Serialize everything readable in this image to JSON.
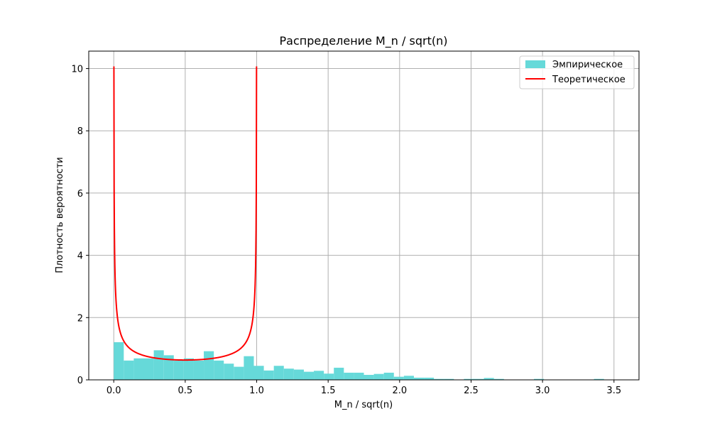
{
  "chart_data": {
    "type": "histogram",
    "title": "Распределение M_n / sqrt(n)",
    "xlabel": "M_n / sqrt(n)",
    "ylabel": "Плотность вероятности",
    "xlim": [
      -0.175,
      3.675
    ],
    "ylim": [
      0,
      10.56
    ],
    "xticks": [
      0.0,
      0.5,
      1.0,
      1.5,
      2.0,
      2.5,
      3.0,
      3.5
    ],
    "xtick_labels": [
      "0.0",
      "0.5",
      "1.0",
      "1.5",
      "2.0",
      "2.5",
      "3.0",
      "3.5"
    ],
    "yticks": [
      0,
      2,
      4,
      6,
      8,
      10
    ],
    "ytick_labels": [
      "0",
      "2",
      "4",
      "6",
      "8",
      "10"
    ],
    "grid": true,
    "legend_position": "top-right",
    "histogram": {
      "name": "Эмпирическое",
      "color": "#66d9d9",
      "bin_edges": [
        0.0,
        0.07,
        0.14,
        0.21,
        0.28,
        0.35,
        0.42,
        0.49,
        0.56,
        0.63,
        0.7,
        0.77,
        0.84,
        0.91,
        0.98,
        1.05,
        1.12,
        1.19,
        1.26,
        1.33,
        1.4,
        1.47,
        1.54,
        1.61,
        1.68,
        1.75,
        1.82,
        1.89,
        1.96,
        2.03,
        2.1,
        2.17,
        2.24,
        2.31,
        2.38,
        2.45,
        2.52,
        2.59,
        2.66,
        2.73,
        2.8,
        2.87,
        2.94,
        3.01,
        3.08,
        3.15,
        3.22,
        3.29,
        3.36,
        3.43,
        3.5
      ],
      "density": [
        1.21,
        0.62,
        0.69,
        0.69,
        0.95,
        0.79,
        0.62,
        0.69,
        0.62,
        0.92,
        0.62,
        0.52,
        0.42,
        0.76,
        0.45,
        0.3,
        0.45,
        0.36,
        0.33,
        0.26,
        0.29,
        0.2,
        0.39,
        0.23,
        0.23,
        0.16,
        0.19,
        0.23,
        0.1,
        0.13,
        0.07,
        0.07,
        0.03,
        0.03,
        0.0,
        0.03,
        0.03,
        0.06,
        0.03,
        0.0,
        0.0,
        0.0,
        0.03,
        0.0,
        0.0,
        0.0,
        0.0,
        0.0,
        0.03,
        0.0
      ]
    },
    "series": [
      {
        "name": "Теоретическое",
        "type": "line",
        "color": "#ff0000",
        "function": "1/(pi*sqrt(x*(1-x)))",
        "domain": [
          0.001,
          0.999
        ]
      }
    ],
    "colors": {
      "grid": "#b0b0b0",
      "axes": "#000000",
      "legend_border": "#cccccc"
    }
  }
}
